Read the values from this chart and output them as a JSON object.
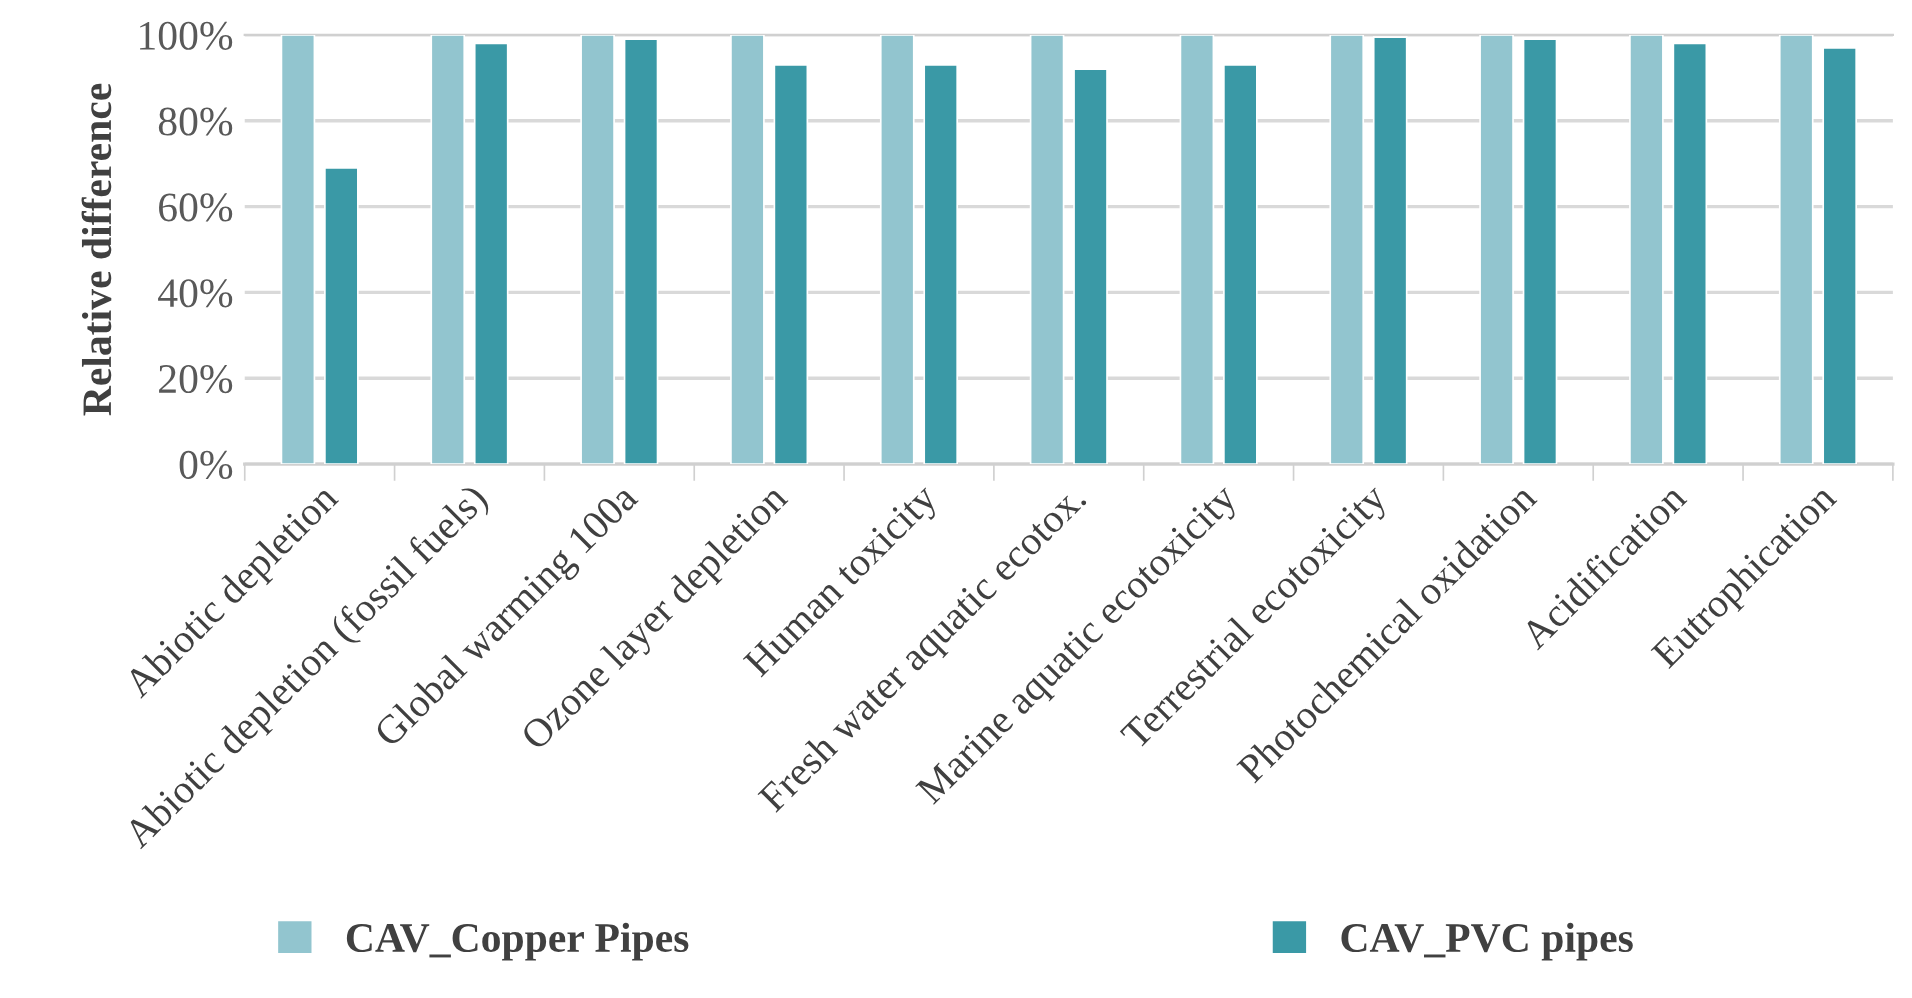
{
  "chart_data": {
    "type": "bar",
    "ylabel": "Relative difference",
    "categories": [
      "Abiotic depletion",
      "Abiotic depletion (fossil fuels)",
      "Global warming 100a",
      "Ozone layer depletion",
      "Human toxicity",
      "Fresh water aquatic ecotox.",
      "Marine aquatic ecotoxicity",
      "Terrestrial ecotoxicity",
      "Photochemical oxidation",
      "Acidification",
      "Eutrophication"
    ],
    "series": [
      {
        "name": "CAV_Copper Pipes",
        "color": "#92c5cf",
        "values": [
          100,
          100,
          100,
          100,
          100,
          100,
          100,
          100,
          100,
          100,
          100
        ]
      },
      {
        "name": "CAV_PVC pipes",
        "color": "#3a99a6",
        "values": [
          69,
          98,
          99,
          93,
          93,
          92,
          93,
          99.5,
          99,
          98,
          97
        ]
      }
    ],
    "ylim": [
      0,
      100
    ],
    "yticks": [
      {
        "value": 0,
        "label": "0%"
      },
      {
        "value": 20,
        "label": "20%"
      },
      {
        "value": 40,
        "label": "40%"
      },
      {
        "value": 60,
        "label": "60%"
      },
      {
        "value": 80,
        "label": "80%"
      },
      {
        "value": 100,
        "label": "100%"
      }
    ],
    "grid": "y",
    "legend": "bottom"
  }
}
